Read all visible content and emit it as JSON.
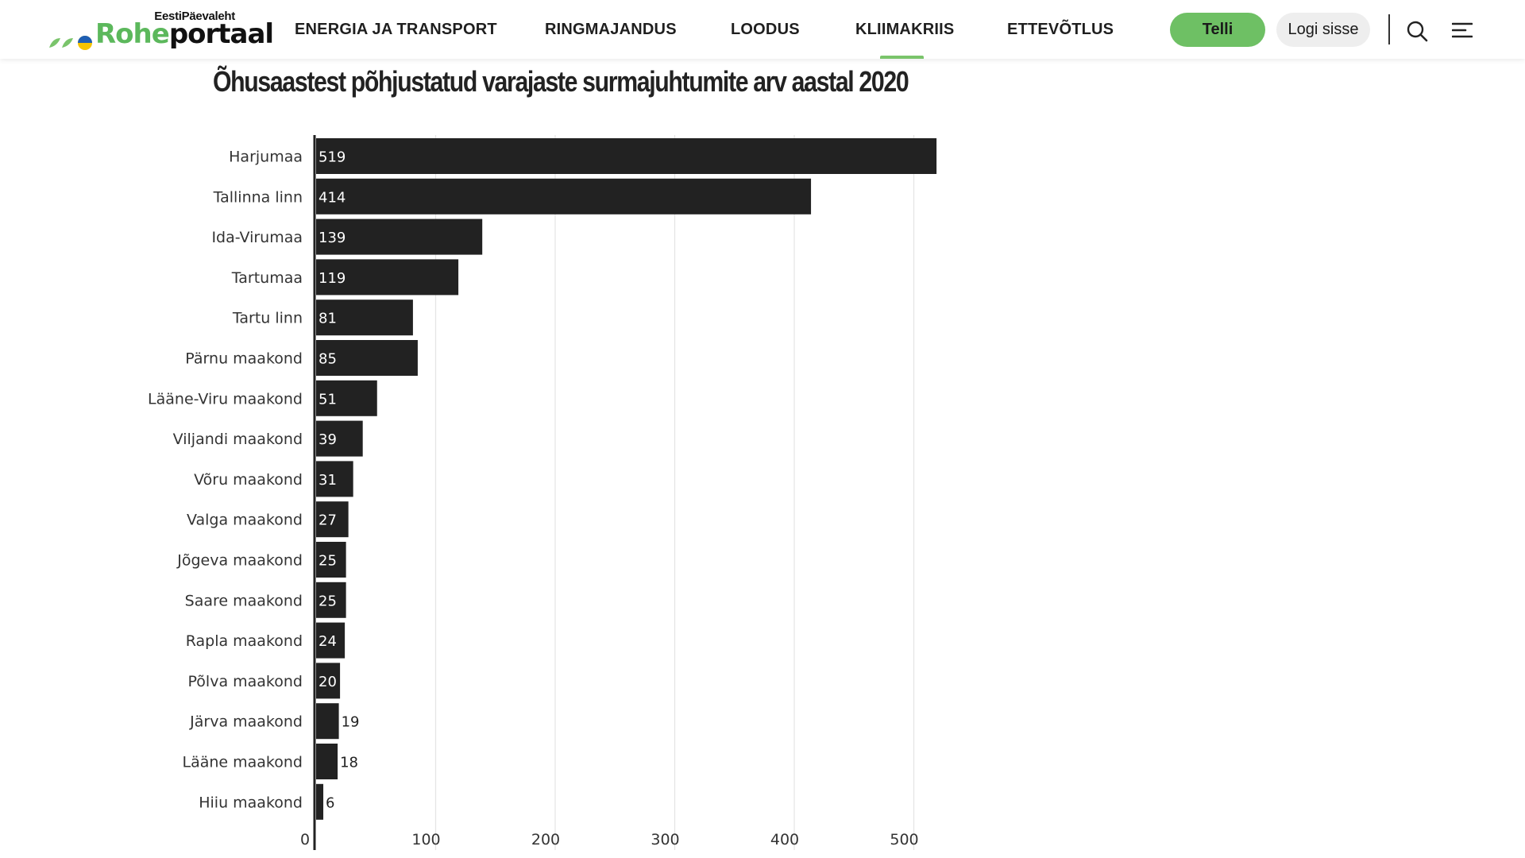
{
  "header": {
    "logo": {
      "top_text": "EestiPäevaleht",
      "brand_green": "Rohe",
      "brand_dark": "portaal"
    },
    "nav": [
      {
        "label": "ENERGIA JA TRANSPORT",
        "active": false
      },
      {
        "label": "RINGMAJANDUS",
        "active": false
      },
      {
        "label": "LOODUS",
        "active": false
      },
      {
        "label": "KLIIMAKRIIS",
        "active": true
      },
      {
        "label": "ETTEVÕTLUS",
        "active": false
      }
    ],
    "subscribe_label": "Telli",
    "login_label": "Logi sisse",
    "icons": [
      "search-icon",
      "menu-icon"
    ],
    "colors": {
      "accent": "#6ec064",
      "login_bg": "#eeeeee"
    }
  },
  "chart_data": {
    "type": "bar",
    "orientation": "horizontal",
    "title": "Õhusaastest põhjustatud varajaste surmajuhtumite arv aastal 2020",
    "categories": [
      "Harjumaa",
      "Tallinna linn",
      "Ida-Virumaa",
      "Tartumaa",
      "Tartu linn",
      "Pärnu maakond",
      "Lääne-Viru maakond",
      "Viljandi maakond",
      "Võru maakond",
      "Valga maakond",
      "Jõgeva maakond",
      "Saare maakond",
      "Rapla maakond",
      "Põlva maakond",
      "Järva maakond",
      "Lääne maakond",
      "Hiiu maakond"
    ],
    "values": [
      519,
      414,
      139,
      119,
      81,
      85,
      51,
      39,
      31,
      27,
      25,
      25,
      24,
      20,
      19,
      18,
      6
    ],
    "xlim": [
      0,
      520
    ],
    "xticks": [
      0,
      100,
      200,
      300,
      400,
      500
    ],
    "xlabel": "",
    "ylabel": "",
    "grid": true,
    "bar_color": "#222222",
    "label_color_inside": "#ffffff",
    "label_color_outside": "#222222"
  }
}
